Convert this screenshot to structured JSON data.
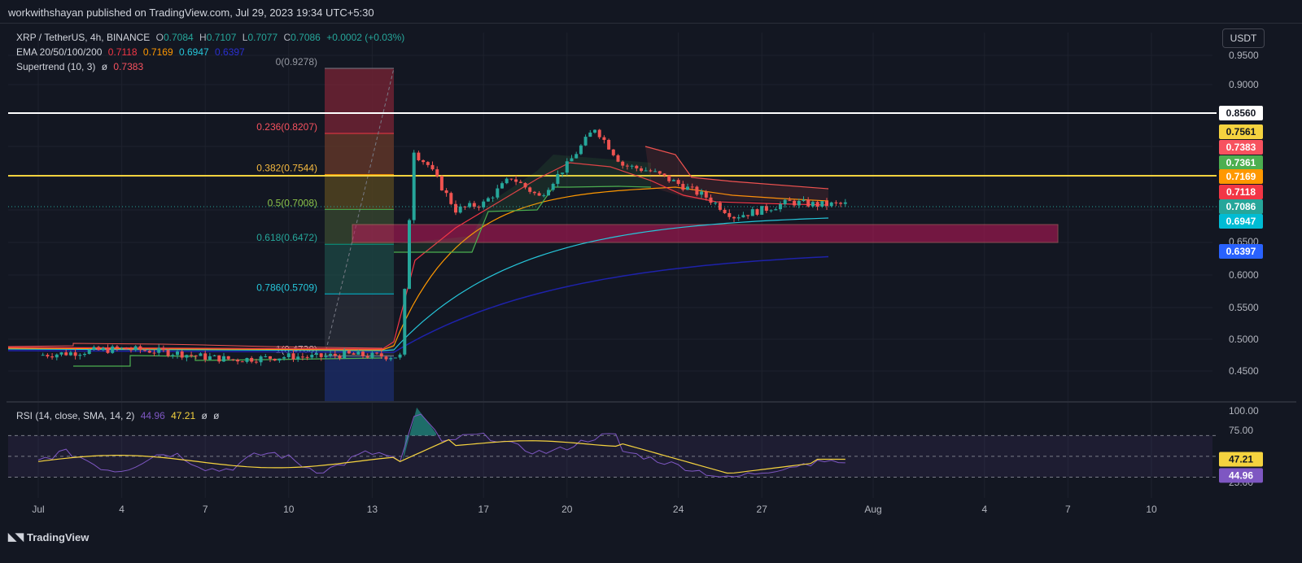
{
  "header": {
    "publisher_text": "workwithshayan published on TradingView.com, Jul 29, 2023 19:34 UTC+5:30"
  },
  "currency_button": "USDT",
  "footer": {
    "brand": "TradingView"
  },
  "legend": {
    "symbol": "XRP / TetherUS, 4h, BINANCE",
    "o_label": "O",
    "o_value": "0.7084",
    "h_label": "H",
    "h_value": "0.7107",
    "l_label": "L",
    "l_value": "0.7077",
    "c_label": "C",
    "c_value": "0.7086",
    "change": "+0.0002 (+0.03%)",
    "ema_label": "EMA 20/50/100/200",
    "ema20": "0.7118",
    "ema50": "0.7169",
    "ema100": "0.6947",
    "ema200": "0.6397",
    "supertrend_label": "Supertrend (10, 3)",
    "supertrend_sym": "ø",
    "supertrend_value": "0.7383",
    "rsi_label": "RSI (14, close, SMA, 14, 2)",
    "rsi_value": "44.96",
    "rsi_sma": "47.21",
    "rsi_sym1": "ø",
    "rsi_sym2": "ø"
  },
  "colors": {
    "up": "#26a69a",
    "down": "#ef5350",
    "ema20": "#f23645",
    "ema50": "#ff9800",
    "ema100": "#26c6da",
    "ema200": "#1e22aa",
    "supertrend_up": "#4caf50",
    "supertrend_down": "#ef5350",
    "rsi": "#7e57c2",
    "rsi_sma": "#f5d33f",
    "level_yellow": "#f5d33f",
    "level_white": "#ffffff",
    "zone": "#c2185b"
  },
  "chart_data": {
    "type": "candlestick",
    "symbol": "XRP / TetherUS",
    "interval": "4h",
    "y_axis_ticks": [
      "0.9500",
      "0.9000",
      "0.6000",
      "0.5500",
      "0.5000",
      "0.4500"
    ],
    "y_range": [
      0.415,
      0.96
    ],
    "x_axis_ticks": [
      "Jul",
      "4",
      "7",
      "10",
      "13",
      "17",
      "20",
      "24",
      "27",
      "Aug",
      "4",
      "7",
      "10"
    ],
    "price_series": [
      {
        "day": 0,
        "close": 0.475
      },
      {
        "day": 1,
        "close": 0.478
      },
      {
        "day": 2,
        "close": 0.482
      },
      {
        "day": 3,
        "close": 0.485
      },
      {
        "day": 4,
        "close": 0.482
      },
      {
        "day": 5,
        "close": 0.478
      },
      {
        "day": 6,
        "close": 0.472
      },
      {
        "day": 7,
        "close": 0.468
      },
      {
        "day": 8,
        "close": 0.47
      },
      {
        "day": 9,
        "close": 0.473
      },
      {
        "day": 10,
        "close": 0.472
      },
      {
        "day": 11,
        "close": 0.476
      },
      {
        "day": 12,
        "close": 0.474
      },
      {
        "day": 13,
        "close": 0.473
      },
      {
        "day": 13.5,
        "close": 0.79
      },
      {
        "day": 14,
        "close": 0.77
      },
      {
        "day": 15,
        "close": 0.7
      },
      {
        "day": 16,
        "close": 0.71
      },
      {
        "day": 17,
        "close": 0.75
      },
      {
        "day": 18,
        "close": 0.72
      },
      {
        "day": 19,
        "close": 0.77
      },
      {
        "day": 20,
        "close": 0.83
      },
      {
        "day": 21,
        "close": 0.77
      },
      {
        "day": 22,
        "close": 0.76
      },
      {
        "day": 23,
        "close": 0.74
      },
      {
        "day": 24,
        "close": 0.72
      },
      {
        "day": 25,
        "close": 0.69
      },
      {
        "day": 26,
        "close": 0.7
      },
      {
        "day": 27,
        "close": 0.712
      },
      {
        "day": 28,
        "close": 0.708
      },
      {
        "day": 29,
        "close": 0.7086
      }
    ],
    "fibonacci": [
      {
        "label": "0(0.9278)",
        "value": 0.9278
      },
      {
        "label": "0.236(0.8207)",
        "value": 0.8207
      },
      {
        "label": "0.382(0.7544)",
        "value": 0.7544
      },
      {
        "label": "0.5(0.7008)",
        "value": 0.7008
      },
      {
        "label": "0.618(0.6472)",
        "value": 0.6472
      },
      {
        "label": "0.786(0.5709)",
        "value": 0.5709
      },
      {
        "label": "1(0.4738)",
        "value": 0.4738
      }
    ],
    "horizontal_levels": [
      {
        "value": 0.856,
        "color": "white"
      },
      {
        "value": 0.7561,
        "color": "yellow"
      }
    ],
    "demand_zone": {
      "top": 0.677,
      "bottom": 0.65
    },
    "price_labels": [
      {
        "text": "0.8560",
        "value": 0.856,
        "bg": "#ffffff",
        "fg": "#131722"
      },
      {
        "text": "0.7561",
        "value": 0.7561,
        "bg": "#f5d33f",
        "fg": "#131722"
      },
      {
        "text": "0.7383",
        "value": 0.7383,
        "bg": "#f7525f",
        "fg": "#ffffff"
      },
      {
        "text": "0.7361",
        "value": 0.7361,
        "bg": "#4caf50",
        "fg": "#ffffff"
      },
      {
        "text": "0.7169",
        "value": 0.7169,
        "bg": "#ff9800",
        "fg": "#ffffff"
      },
      {
        "text": "0.7118",
        "value": 0.7118,
        "bg": "#f23645",
        "fg": "#ffffff"
      },
      {
        "text": "0.7086",
        "value": 0.7086,
        "bg": "#26a69a",
        "fg": "#ffffff"
      },
      {
        "text": "0.6947",
        "value": 0.6947,
        "bg": "#00bcd4",
        "fg": "#ffffff"
      },
      {
        "text": "0.6397",
        "value": 0.6397,
        "bg": "#2962ff",
        "fg": "#ffffff"
      }
    ],
    "rsi": {
      "y_axis_ticks": [
        "100.00",
        "75.00",
        "25.00"
      ],
      "levels": [
        70,
        50,
        30
      ],
      "value": 44.96,
      "sma": 47.21,
      "value_label": "44.96",
      "sma_label": "47.21"
    }
  }
}
